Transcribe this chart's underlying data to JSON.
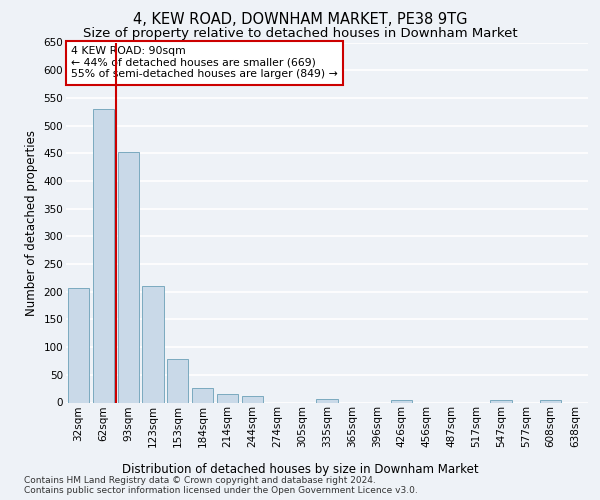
{
  "title": "4, KEW ROAD, DOWNHAM MARKET, PE38 9TG",
  "subtitle": "Size of property relative to detached houses in Downham Market",
  "xlabel": "Distribution of detached houses by size in Downham Market",
  "ylabel": "Number of detached properties",
  "categories": [
    "32sqm",
    "62sqm",
    "93sqm",
    "123sqm",
    "153sqm",
    "184sqm",
    "214sqm",
    "244sqm",
    "274sqm",
    "305sqm",
    "335sqm",
    "365sqm",
    "396sqm",
    "426sqm",
    "456sqm",
    "487sqm",
    "517sqm",
    "547sqm",
    "577sqm",
    "608sqm",
    "638sqm"
  ],
  "values": [
    207,
    530,
    452,
    211,
    78,
    26,
    15,
    11,
    0,
    0,
    6,
    0,
    0,
    5,
    0,
    0,
    0,
    4,
    0,
    5,
    0
  ],
  "bar_color": "#c9d9e8",
  "bar_edge_color": "#7aaabf",
  "highlight_line_color": "#cc0000",
  "highlight_bar_index": 2,
  "annotation_box_text": "4 KEW ROAD: 90sqm\n← 44% of detached houses are smaller (669)\n55% of semi-detached houses are larger (849) →",
  "annotation_box_color": "#cc0000",
  "annotation_box_bg": "#ffffff",
  "ylim": [
    0,
    650
  ],
  "yticks": [
    0,
    50,
    100,
    150,
    200,
    250,
    300,
    350,
    400,
    450,
    500,
    550,
    600,
    650
  ],
  "footer_text": "Contains HM Land Registry data © Crown copyright and database right 2024.\nContains public sector information licensed under the Open Government Licence v3.0.",
  "bg_color": "#eef2f7",
  "plot_bg_color": "#eef2f7",
  "grid_color": "#ffffff",
  "title_fontsize": 10.5,
  "subtitle_fontsize": 9.5,
  "axis_label_fontsize": 8.5,
  "tick_fontsize": 7.5,
  "annotation_fontsize": 7.8,
  "footer_fontsize": 6.5
}
